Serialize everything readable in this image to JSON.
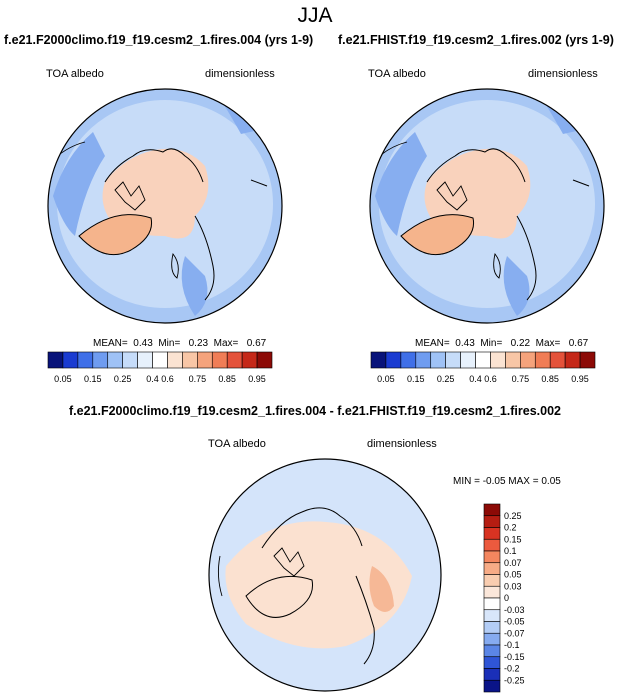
{
  "season": "JJA",
  "panels": [
    {
      "title": "f.e21.F2000climo.f19_f19.cesm2_1.fires.004 (yrs 1-9)",
      "variable": "TOA albedo",
      "units": "dimensionless",
      "stats": {
        "mean_label": "MEAN=",
        "mean": "0.43",
        "min_label": "Min=",
        "min": "0.23",
        "max_label": "Max=",
        "max": "0.67"
      }
    },
    {
      "title": "f.e21.FHIST.f19_f19.cesm2_1.fires.002 (yrs 1-9)",
      "variable": "TOA albedo",
      "units": "dimensionless",
      "stats": {
        "mean_label": "MEAN=",
        "mean": "0.43",
        "min_label": "Min=",
        "min": "0.22",
        "max_label": "Max=",
        "max": "0.67"
      }
    }
  ],
  "horizontal_colorbar": {
    "labels": [
      "0.05",
      "0.15",
      "0.25",
      "0.4",
      "0.6",
      "0.75",
      "0.85",
      "0.95"
    ],
    "colors": [
      "#08137a",
      "#1a3bd1",
      "#3f6fe8",
      "#6f9cf0",
      "#9fc2f6",
      "#c6dcf9",
      "#e7f1fc",
      "#ffffff",
      "#fbe3d2",
      "#f8c6a6",
      "#f5a37c",
      "#f07d56",
      "#e4523a",
      "#c52818",
      "#8c0a06"
    ]
  },
  "difference": {
    "title": "f.e21.F2000climo.f19_f19.cesm2_1.fires.004 - f.e21.FHIST.f19_f19.cesm2_1.fires.002",
    "variable": "TOA albedo",
    "units": "dimensionless",
    "minmax": "MIN = -0.05 MAX = 0.05"
  },
  "vertical_colorbar": {
    "labels": [
      "0.25",
      "0.2",
      "0.15",
      "0.1",
      "0.07",
      "0.05",
      "0.03",
      "0",
      "-0.03",
      "-0.05",
      "-0.07",
      "-0.1",
      "-0.15",
      "-0.2",
      "-0.25"
    ],
    "colors": [
      "#8c0a06",
      "#b51d12",
      "#d83322",
      "#ec5a3e",
      "#f4865f",
      "#f7ab86",
      "#f9cdb0",
      "#fbe7da",
      "#ffffff",
      "#d8e6fa",
      "#b3cdf6",
      "#86abf0",
      "#5b86e6",
      "#2f55d6",
      "#1a2fb8",
      "#0a1488"
    ]
  },
  "legend": {
    "albedo_land": "#f9d2bc",
    "albedo_greenland": "#f5b48c",
    "albedo_ocean_light": "#c7dcf8",
    "albedo_ocean_mid": "#a8c7f4",
    "albedo_ocean_dark": "#87aef0",
    "diff_base": "#d4e4fa",
    "diff_pos": "#fbe1d0",
    "diff_pos_strong": "#f6b896"
  }
}
